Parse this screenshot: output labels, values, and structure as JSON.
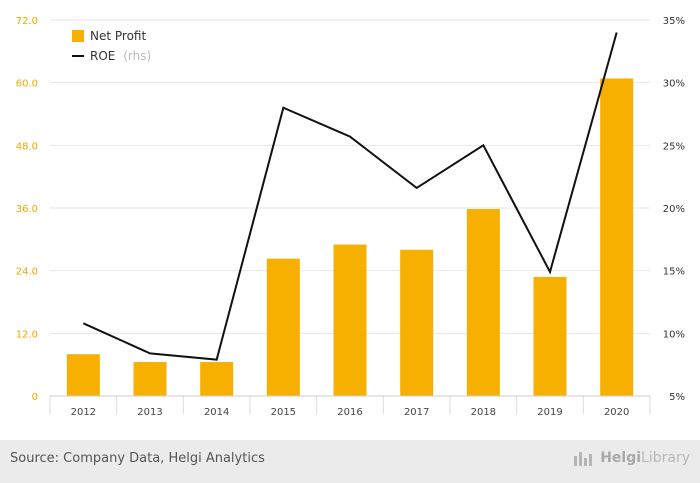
{
  "chart_data": {
    "type": "bar+line",
    "categories": [
      "2012",
      "2013",
      "2014",
      "2015",
      "2016",
      "2017",
      "2018",
      "2019",
      "2020"
    ],
    "series": [
      {
        "name": "Net Profit",
        "type": "bar",
        "axis": "left",
        "color": "#f7b000",
        "values": [
          8.0,
          6.5,
          6.5,
          26.3,
          29.0,
          28.0,
          35.8,
          22.8,
          60.8
        ]
      },
      {
        "name": "ROE",
        "name_note": "(rhs)",
        "type": "line",
        "axis": "right",
        "color": "#111111",
        "values": [
          10.8,
          8.4,
          7.9,
          28.0,
          25.7,
          21.6,
          25.0,
          14.9,
          34.0
        ]
      }
    ],
    "left_axis": {
      "ticks": [
        "0",
        "12.0",
        "24.0",
        "36.0",
        "48.0",
        "60.0",
        "72.0"
      ],
      "range": [
        0,
        72
      ]
    },
    "right_axis": {
      "ticks": [
        "5%",
        "10%",
        "15%",
        "20%",
        "25%",
        "30%",
        "35%"
      ],
      "range": [
        5,
        35
      ]
    },
    "grid": true,
    "legend_position": "top-left"
  },
  "footer": {
    "source": "Source: Company Data, Helgi Analytics",
    "logo_brand": "Helgi",
    "logo_sub": "Library"
  }
}
